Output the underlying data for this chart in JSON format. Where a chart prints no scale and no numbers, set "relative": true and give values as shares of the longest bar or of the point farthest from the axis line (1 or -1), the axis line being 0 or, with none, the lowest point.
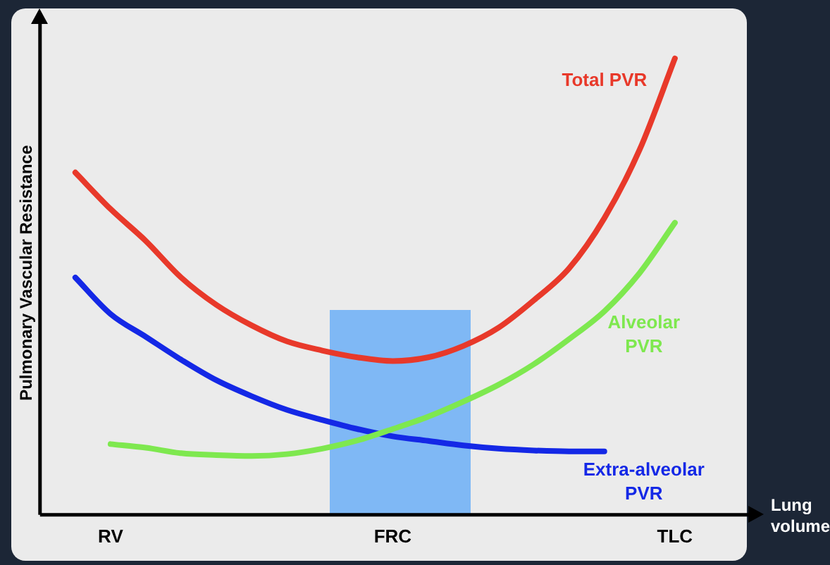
{
  "chart_data": {
    "type": "line",
    "relative": true,
    "ylabel": "Pulmonary Vascular Resistance",
    "xlabel": "Lung volume",
    "grid": false,
    "legend": false,
    "marker": "none",
    "line_style": "solid",
    "categories": [
      null,
      null,
      "RV",
      null,
      null,
      null,
      null,
      null,
      null,
      null,
      "FRC",
      null,
      null,
      null,
      null,
      null,
      null,
      null,
      "TLC",
      null,
      null
    ],
    "series": [
      {
        "name": "Total PVR",
        "color": "#e8392a",
        "values": [
          null,
          0.75,
          0.67,
          0.6,
          0.52,
          0.46,
          0.415,
          0.38,
          0.36,
          0.345,
          0.337,
          0.345,
          0.37,
          0.41,
          0.47,
          0.54,
          0.65,
          0.8,
          1.0,
          null,
          null
        ]
      },
      {
        "name": "Alveolar PVR",
        "color": "#7ee84f",
        "values": [
          null,
          null,
          0.155,
          0.147,
          0.135,
          0.131,
          0.129,
          0.133,
          0.145,
          0.163,
          0.188,
          0.215,
          0.248,
          0.285,
          0.33,
          0.385,
          0.446,
          0.53,
          0.64,
          null,
          null
        ]
      },
      {
        "name": "Extra-alveolar PVR",
        "color": "#1428e6",
        "values": [
          null,
          0.52,
          0.44,
          0.39,
          0.34,
          0.295,
          0.26,
          0.23,
          0.208,
          0.188,
          0.172,
          0.162,
          0.152,
          0.145,
          0.141,
          0.139,
          0.139,
          null,
          null,
          null,
          null
        ]
      }
    ]
  }
}
